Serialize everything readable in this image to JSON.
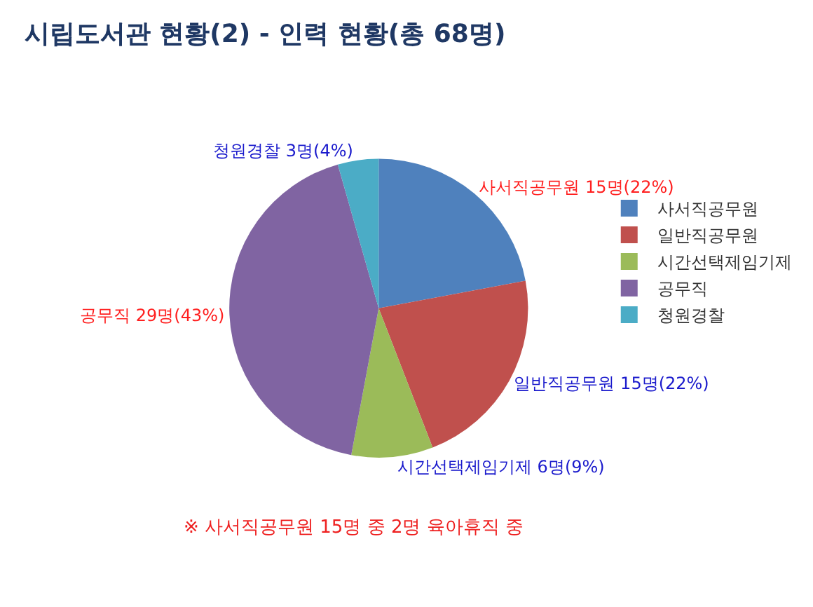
{
  "chart_data": {
    "type": "pie",
    "title": "시립도서관 현황(2) - 인력 현황(총 68명)",
    "categories": [
      "사서직공무원",
      "일반직공무원",
      "시간선택제임기제",
      "공무직",
      "청원경찰"
    ],
    "values": [
      15,
      15,
      6,
      29,
      3
    ],
    "colors": [
      "#4f81bd",
      "#c0504d",
      "#9bbb59",
      "#8064a2",
      "#4bacc6"
    ],
    "value_labels": [
      "사서직공무원 15명(22%)",
      "일반직공무원 15명(22%)",
      "시간선택제임기제 6명(9%)",
      "공무직 29명(43%)",
      "청원경찰 3명(4%)"
    ],
    "annotations": [
      "※ 사서직공무원 15명 중 2명 육아휴직 중"
    ],
    "legend": "right"
  }
}
